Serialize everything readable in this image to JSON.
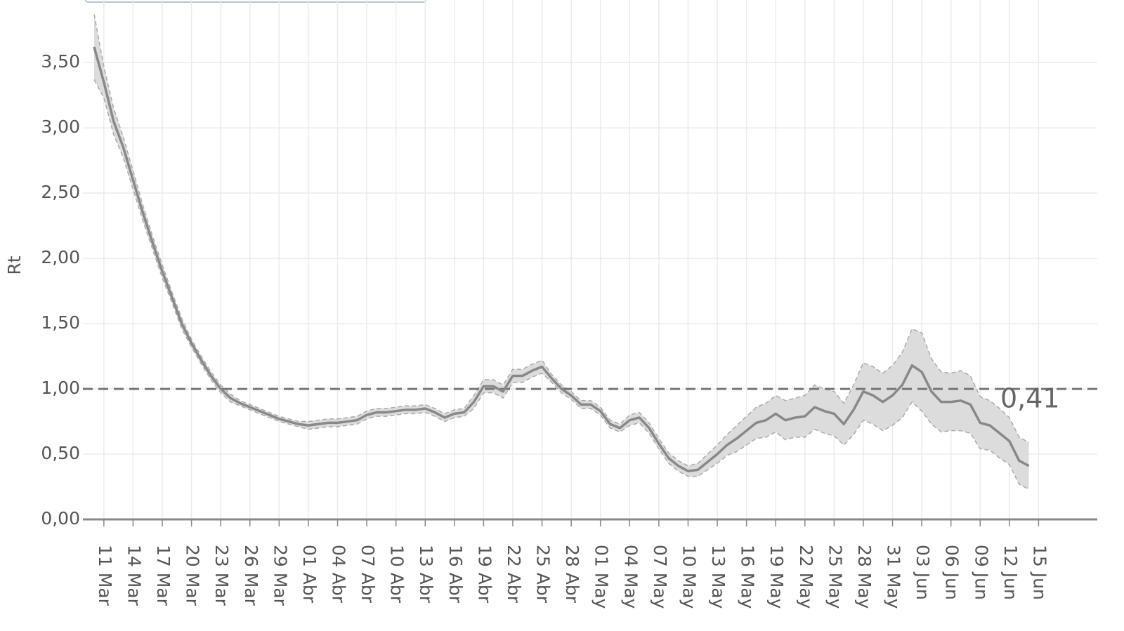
{
  "chart_data": {
    "type": "line",
    "ylabel": "Rt",
    "color": "#888888",
    "band_color": "#dcdcdc",
    "categories": [
      "10 Mar",
      "11 Mar",
      "12 Mar",
      "13 Mar",
      "14 Mar",
      "15 Mar",
      "16 Mar",
      "17 Mar",
      "18 Mar",
      "19 Mar",
      "20 Mar",
      "21 Mar",
      "22 Mar",
      "23 Mar",
      "24 Mar",
      "25 Mar",
      "26 Mar",
      "27 Mar",
      "28 Mar",
      "29 Mar",
      "30 Mar",
      "31 Mar",
      "01 Abr",
      "02 Abr",
      "03 Abr",
      "04 Abr",
      "05 Abr",
      "06 Abr",
      "07 Abr",
      "08 Abr",
      "09 Abr",
      "10 Abr",
      "11 Abr",
      "12 Abr",
      "13 Abr",
      "14 Abr",
      "15 Abr",
      "16 Abr",
      "17 Abr",
      "18 Abr",
      "19 Abr",
      "20 Abr",
      "21 Abr",
      "22 Abr",
      "23 Abr",
      "24 Abr",
      "25 Abr",
      "26 Abr",
      "27 Abr",
      "28 Abr",
      "29 Abr",
      "30 Abr",
      "01 May",
      "02 May",
      "03 May",
      "04 May",
      "05 May",
      "06 May",
      "07 May",
      "08 May",
      "09 May",
      "10 May",
      "11 May",
      "12 May",
      "13 May",
      "14 May",
      "15 May",
      "16 May",
      "17 May",
      "18 May",
      "19 May",
      "20 May",
      "21 May",
      "22 May",
      "23 May",
      "24 May",
      "25 May",
      "26 May",
      "27 May",
      "28 May",
      "29 May",
      "30 May",
      "31 May",
      "01 Jun",
      "02 Jun",
      "03 Jun",
      "04 Jun",
      "05 Jun",
      "06 Jun",
      "07 Jun",
      "08 Jun",
      "09 Jun",
      "10 Jun",
      "11 Jun",
      "12 Jun",
      "13 Jun",
      "14 Jun",
      "15 Jun"
    ],
    "values": [
      3.62,
      3.35,
      3.05,
      2.85,
      2.6,
      2.35,
      2.12,
      1.9,
      1.7,
      1.5,
      1.35,
      1.22,
      1.1,
      1.0,
      0.93,
      0.89,
      0.86,
      0.83,
      0.8,
      0.77,
      0.75,
      0.73,
      0.72,
      0.73,
      0.74,
      0.74,
      0.75,
      0.76,
      0.8,
      0.82,
      0.82,
      0.83,
      0.84,
      0.84,
      0.85,
      0.82,
      0.78,
      0.81,
      0.82,
      0.9,
      1.02,
      1.02,
      0.98,
      1.1,
      1.1,
      1.14,
      1.17,
      1.08,
      1.0,
      0.95,
      0.88,
      0.88,
      0.83,
      0.73,
      0.7,
      0.76,
      0.78,
      0.7,
      0.58,
      0.47,
      0.41,
      0.37,
      0.38,
      0.44,
      0.5,
      0.57,
      0.62,
      0.68,
      0.74,
      0.76,
      0.81,
      0.76,
      0.78,
      0.79,
      0.86,
      0.83,
      0.81,
      0.73,
      0.84,
      0.98,
      0.95,
      0.9,
      0.95,
      1.03,
      1.18,
      1.13,
      0.98,
      0.9,
      0.9,
      0.91,
      0.88,
      0.74,
      0.72,
      0.66,
      0.6,
      0.45,
      0.41,
      null
    ],
    "lower": [
      3.37,
      3.23,
      2.95,
      2.77,
      2.53,
      2.29,
      2.07,
      1.85,
      1.66,
      1.46,
      1.32,
      1.19,
      1.07,
      0.97,
      0.9,
      0.87,
      0.84,
      0.81,
      0.78,
      0.75,
      0.73,
      0.71,
      0.69,
      0.7,
      0.71,
      0.71,
      0.72,
      0.73,
      0.77,
      0.79,
      0.79,
      0.8,
      0.81,
      0.81,
      0.82,
      0.79,
      0.75,
      0.78,
      0.79,
      0.85,
      0.97,
      0.97,
      0.93,
      1.05,
      1.05,
      1.09,
      1.12,
      1.05,
      0.97,
      0.92,
      0.85,
      0.85,
      0.8,
      0.7,
      0.67,
      0.72,
      0.74,
      0.66,
      0.54,
      0.43,
      0.37,
      0.33,
      0.33,
      0.38,
      0.43,
      0.49,
      0.52,
      0.57,
      0.62,
      0.63,
      0.67,
      0.61,
      0.63,
      0.63,
      0.69,
      0.66,
      0.64,
      0.57,
      0.65,
      0.76,
      0.73,
      0.68,
      0.72,
      0.78,
      0.9,
      0.83,
      0.73,
      0.67,
      0.68,
      0.68,
      0.66,
      0.54,
      0.53,
      0.47,
      0.42,
      0.27,
      0.23,
      null
    ],
    "upper": [
      3.87,
      3.47,
      3.15,
      2.93,
      2.67,
      2.41,
      2.17,
      1.95,
      1.74,
      1.54,
      1.38,
      1.25,
      1.13,
      1.03,
      0.96,
      0.91,
      0.88,
      0.85,
      0.82,
      0.79,
      0.77,
      0.75,
      0.75,
      0.76,
      0.77,
      0.77,
      0.78,
      0.79,
      0.83,
      0.85,
      0.85,
      0.86,
      0.87,
      0.87,
      0.88,
      0.85,
      0.81,
      0.84,
      0.85,
      0.95,
      1.07,
      1.07,
      1.03,
      1.15,
      1.15,
      1.19,
      1.22,
      1.11,
      1.03,
      0.98,
      0.91,
      0.91,
      0.86,
      0.76,
      0.73,
      0.8,
      0.82,
      0.74,
      0.62,
      0.51,
      0.45,
      0.41,
      0.43,
      0.5,
      0.57,
      0.65,
      0.72,
      0.79,
      0.86,
      0.89,
      0.95,
      0.91,
      0.93,
      0.95,
      1.03,
      1.0,
      0.98,
      0.89,
      1.03,
      1.2,
      1.17,
      1.12,
      1.18,
      1.28,
      1.46,
      1.43,
      1.23,
      1.13,
      1.12,
      1.14,
      1.1,
      0.94,
      0.91,
      0.85,
      0.78,
      0.63,
      0.59,
      null
    ],
    "end_label": "0,41",
    "reference_line": 1,
    "ylim": [
      0,
      3.98
    ],
    "yticks": [
      {
        "value": 0,
        "label": "0,00"
      },
      {
        "value": 0.5,
        "label": "0,50"
      },
      {
        "value": 1,
        "label": "1,00"
      },
      {
        "value": 1.5,
        "label": "1,50"
      },
      {
        "value": 2,
        "label": "2,00"
      },
      {
        "value": 2.5,
        "label": "2,50"
      },
      {
        "value": 3,
        "label": "3,00"
      },
      {
        "value": 3.5,
        "label": "3,50"
      }
    ],
    "xticks": [
      "11 Mar",
      "14 Mar",
      "17 Mar",
      "20 Mar",
      "23 Mar",
      "26 Mar",
      "29 Mar",
      "01 Abr",
      "04 Abr",
      "07 Abr",
      "10 Abr",
      "13 Abr",
      "16 Abr",
      "19 Abr",
      "22 Abr",
      "25 Abr",
      "28 Abr",
      "01 May",
      "04 May",
      "07 May",
      "10 May",
      "13 May",
      "16 May",
      "19 May",
      "22 May",
      "25 May",
      "28 May",
      "31 May",
      "03 Jun",
      "06 Jun",
      "09 Jun",
      "12 Jun",
      "15 Jun"
    ],
    "grid": true
  }
}
